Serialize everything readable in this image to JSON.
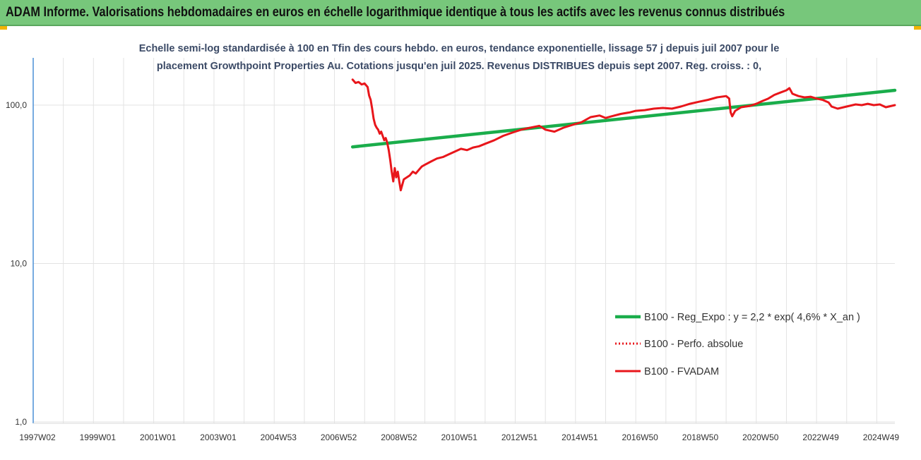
{
  "header": {
    "title": "ADAM Informe. Valorisations hebdomadaires en euros en échelle logarithmique identique à tous les actifs avec les revenus connus distribués"
  },
  "colors": {
    "header_bg": "#77c77b",
    "corner_accent": "#f2b400",
    "regression": "#1aad4b",
    "fvadam": "#e8161b",
    "perfo": "#e8161b",
    "subtitle": "#3b4a66"
  },
  "chart_data": {
    "type": "line",
    "title_line1": "Echelle semi-log standardisée à 100 en Tfin des cours hebdo. en euros, tendance exponentielle, lissage 57 j depuis juil 2007 pour le",
    "title_line2": "placement Growthpoint Properties Au. Cotations jusqu'en juil 2025. Revenus DISTRIBUES depuis sept 2007. Reg. croiss. : 0,",
    "y_scale": "log",
    "ylim": [
      1,
      200
    ],
    "y_ticks": [
      {
        "value": 1,
        "label": "1,0"
      },
      {
        "value": 10,
        "label": "10,0"
      },
      {
        "value": 100,
        "label": "100,0"
      }
    ],
    "xlim": [
      1997.0,
      2025.6
    ],
    "x_ticks": [
      {
        "value": 1997.0,
        "label": "1997W02"
      },
      {
        "value": 1999.0,
        "label": "1999W01"
      },
      {
        "value": 2001.0,
        "label": "2001W01"
      },
      {
        "value": 2003.0,
        "label": "2003W01"
      },
      {
        "value": 2005.0,
        "label": "2004W53"
      },
      {
        "value": 2007.0,
        "label": "2006W52"
      },
      {
        "value": 2009.0,
        "label": "2008W52"
      },
      {
        "value": 2011.0,
        "label": "2010W51"
      },
      {
        "value": 2013.0,
        "label": "2012W51"
      },
      {
        "value": 2015.0,
        "label": "2014W51"
      },
      {
        "value": 2017.0,
        "label": "2016W50"
      },
      {
        "value": 2019.0,
        "label": "2018W50"
      },
      {
        "value": 2021.0,
        "label": "2020W50"
      },
      {
        "value": 2023.0,
        "label": "2022W49"
      },
      {
        "value": 2025.0,
        "label": "2024W49"
      }
    ],
    "grid": "vertical",
    "legend_position": "bottom-right",
    "series": [
      {
        "name": "B100 - Reg_Expo : y = 2,2 * exp( 4,6% *  X_an )",
        "color": "#1aad4b",
        "style": "solid",
        "points": [
          [
            2007.6,
            54.5
          ],
          [
            2025.6,
            124.0
          ]
        ]
      },
      {
        "name": "B100 - Perfo. absolue",
        "color": "#e8161b",
        "style": "dotted",
        "points": []
      },
      {
        "name": "B100 - FVADAM",
        "color": "#e8161b",
        "style": "solid",
        "points": [
          [
            2007.6,
            145
          ],
          [
            2007.7,
            138
          ],
          [
            2007.8,
            140
          ],
          [
            2007.9,
            135
          ],
          [
            2008.0,
            137
          ],
          [
            2008.1,
            130
          ],
          [
            2008.15,
            115
          ],
          [
            2008.2,
            108
          ],
          [
            2008.25,
            95
          ],
          [
            2008.3,
            82
          ],
          [
            2008.35,
            75
          ],
          [
            2008.4,
            72
          ],
          [
            2008.45,
            70
          ],
          [
            2008.5,
            66
          ],
          [
            2008.55,
            68
          ],
          [
            2008.6,
            64
          ],
          [
            2008.65,
            60
          ],
          [
            2008.7,
            62
          ],
          [
            2008.75,
            58
          ],
          [
            2008.8,
            52
          ],
          [
            2008.85,
            45
          ],
          [
            2008.9,
            38
          ],
          [
            2008.95,
            33
          ],
          [
            2009.0,
            40
          ],
          [
            2009.05,
            35
          ],
          [
            2009.1,
            38
          ],
          [
            2009.15,
            33
          ],
          [
            2009.2,
            29
          ],
          [
            2009.3,
            34
          ],
          [
            2009.4,
            35
          ],
          [
            2009.5,
            36
          ],
          [
            2009.6,
            38
          ],
          [
            2009.7,
            37
          ],
          [
            2009.8,
            39
          ],
          [
            2009.9,
            41
          ],
          [
            2010.0,
            42
          ],
          [
            2010.2,
            44
          ],
          [
            2010.4,
            46
          ],
          [
            2010.6,
            47
          ],
          [
            2010.8,
            49
          ],
          [
            2011.0,
            51
          ],
          [
            2011.2,
            53
          ],
          [
            2011.4,
            52
          ],
          [
            2011.6,
            54
          ],
          [
            2011.8,
            55
          ],
          [
            2012.0,
            57
          ],
          [
            2012.3,
            60
          ],
          [
            2012.6,
            64
          ],
          [
            2012.9,
            67
          ],
          [
            2013.2,
            70
          ],
          [
            2013.5,
            72
          ],
          [
            2013.8,
            74
          ],
          [
            2013.9,
            72
          ],
          [
            2014.0,
            70
          ],
          [
            2014.3,
            68
          ],
          [
            2014.6,
            72
          ],
          [
            2014.9,
            75
          ],
          [
            2015.2,
            78
          ],
          [
            2015.5,
            84
          ],
          [
            2015.8,
            86
          ],
          [
            2016.0,
            83
          ],
          [
            2016.2,
            85
          ],
          [
            2016.5,
            88
          ],
          [
            2016.8,
            90
          ],
          [
            2017.0,
            92
          ],
          [
            2017.3,
            93
          ],
          [
            2017.6,
            95
          ],
          [
            2017.9,
            96
          ],
          [
            2018.2,
            95
          ],
          [
            2018.5,
            98
          ],
          [
            2018.8,
            102
          ],
          [
            2019.1,
            105
          ],
          [
            2019.4,
            108
          ],
          [
            2019.7,
            112
          ],
          [
            2020.0,
            114
          ],
          [
            2020.1,
            110
          ],
          [
            2020.15,
            90
          ],
          [
            2020.2,
            85
          ],
          [
            2020.3,
            92
          ],
          [
            2020.5,
            97
          ],
          [
            2020.8,
            99
          ],
          [
            2021.0,
            102
          ],
          [
            2021.2,
            106
          ],
          [
            2021.4,
            110
          ],
          [
            2021.6,
            116
          ],
          [
            2021.8,
            120
          ],
          [
            2022.0,
            124
          ],
          [
            2022.1,
            128
          ],
          [
            2022.2,
            118
          ],
          [
            2022.4,
            114
          ],
          [
            2022.6,
            112
          ],
          [
            2022.8,
            113
          ],
          [
            2023.0,
            110
          ],
          [
            2023.2,
            108
          ],
          [
            2023.4,
            104
          ],
          [
            2023.5,
            98
          ],
          [
            2023.7,
            95
          ],
          [
            2023.9,
            97
          ],
          [
            2024.1,
            99
          ],
          [
            2024.3,
            101
          ],
          [
            2024.5,
            100
          ],
          [
            2024.7,
            102
          ],
          [
            2024.9,
            100
          ],
          [
            2025.1,
            101
          ],
          [
            2025.3,
            97
          ],
          [
            2025.5,
            99
          ],
          [
            2025.6,
            100
          ]
        ]
      }
    ]
  }
}
